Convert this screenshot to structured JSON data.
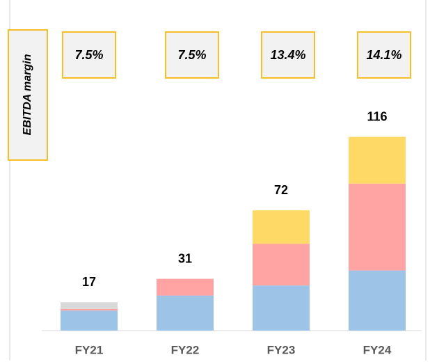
{
  "chart_data": {
    "type": "stacked_bar",
    "categories": [
      "FY21",
      "FY22",
      "FY23",
      "FY24"
    ],
    "series": [
      {
        "color": "#9dc3e6",
        "values": [
          12,
          21,
          27,
          36
        ]
      },
      {
        "color": "#ffa3a3",
        "values": [
          1,
          10,
          25,
          52
        ]
      },
      {
        "color": "#ffd966",
        "values": [
          null,
          null,
          20,
          28
        ]
      },
      {
        "color": "#d9d9d9",
        "values": [
          4,
          null,
          null,
          null
        ]
      }
    ],
    "totals": [
      17,
      31,
      72,
      116
    ],
    "margin": {
      "label": "EBITDA margin",
      "values": [
        7.5,
        7.5,
        13.4,
        14.1
      ],
      "value_labels": [
        "7.5%",
        "7.5%",
        "13.4%",
        "14.1%"
      ]
    }
  }
}
